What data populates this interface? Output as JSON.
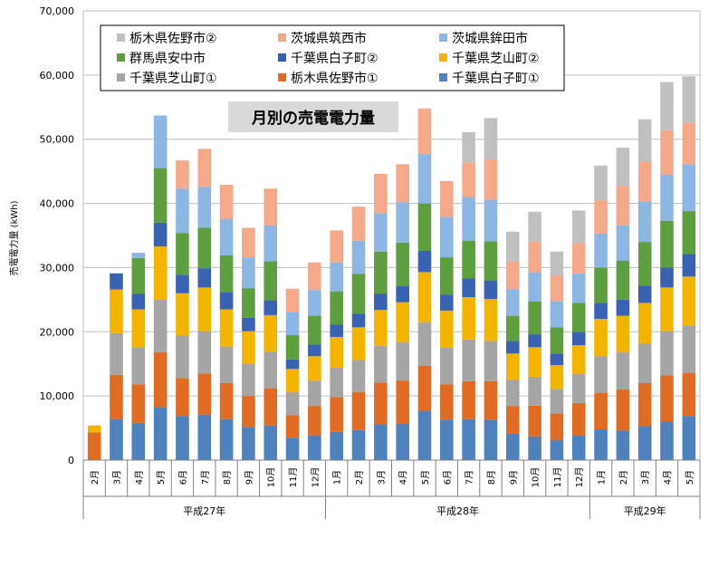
{
  "chart_data": {
    "type": "bar",
    "stacked": true,
    "title": "月別の売電電力量",
    "ylabel": "売電電力量 (kWh)",
    "ylim": [
      0,
      70000
    ],
    "yticks": [
      "0",
      "10,000",
      "20,000",
      "30,000",
      "40,000",
      "50,000",
      "60,000",
      "70,000"
    ],
    "ytick_values": [
      0,
      10000,
      20000,
      30000,
      40000,
      50000,
      60000,
      70000
    ],
    "grid": true,
    "legend_position": "top",
    "categories": [
      "2月",
      "3月",
      "4月",
      "5月",
      "6月",
      "7月",
      "8月",
      "9月",
      "10月",
      "11月",
      "12月",
      "1月",
      "2月",
      "3月",
      "4月",
      "5月",
      "6月",
      "7月",
      "8月",
      "9月",
      "10月",
      "11月",
      "12月",
      "1月",
      "2月",
      "3月",
      "4月",
      "5月"
    ],
    "groups": [
      {
        "label": "平成27年",
        "start": 0,
        "end": 10
      },
      {
        "label": "平成28年",
        "start": 11,
        "end": 22
      },
      {
        "label": "平成29年",
        "start": 23,
        "end": 27
      }
    ],
    "series": [
      {
        "name": "千葉県白子町①",
        "color": "#4f81bd",
        "values": [
          0,
          6400,
          5800,
          8300,
          6900,
          7100,
          6400,
          5200,
          5400,
          3500,
          3900,
          4400,
          4700,
          5600,
          5700,
          7700,
          6300,
          6400,
          6300,
          4100,
          3700,
          3100,
          3800,
          4800,
          4600,
          5300,
          6000,
          6900
        ]
      },
      {
        "name": "栃木県佐野市①",
        "color": "#e06c23",
        "values": [
          4300,
          6900,
          6000,
          8500,
          5900,
          6400,
          5600,
          4800,
          5800,
          3500,
          4500,
          5400,
          5900,
          6500,
          6700,
          7000,
          5500,
          5900,
          6000,
          4300,
          4800,
          4200,
          5100,
          5700,
          6400,
          6700,
          7200,
          6700
        ]
      },
      {
        "name": "千葉県芝山町①",
        "color": "#a5a5a5",
        "values": [
          0,
          6500,
          5800,
          8200,
          6600,
          6600,
          5700,
          5000,
          5700,
          3600,
          4000,
          4600,
          5000,
          5700,
          6000,
          6800,
          5700,
          6500,
          6300,
          4100,
          4500,
          3800,
          4500,
          5700,
          5800,
          6200,
          6900,
          7400
        ]
      },
      {
        "name": "千葉県芝山町②",
        "color": "#f3b400",
        "values": [
          1100,
          6800,
          5900,
          8300,
          6600,
          6800,
          5800,
          5100,
          5700,
          3600,
          3800,
          4800,
          5100,
          5600,
          6200,
          7800,
          5800,
          6600,
          6500,
          4100,
          4600,
          3700,
          4500,
          5800,
          5700,
          6300,
          6800,
          7600
        ]
      },
      {
        "name": "千葉県白子町②",
        "color": "#3a62b2",
        "values": [
          0,
          2500,
          2400,
          3700,
          2900,
          3000,
          2700,
          2100,
          2300,
          1500,
          1800,
          1900,
          2100,
          2500,
          2500,
          3300,
          2500,
          2900,
          2900,
          2000,
          2000,
          1800,
          2100,
          2500,
          2500,
          2700,
          3100,
          3500
        ]
      },
      {
        "name": "群馬県安中市",
        "color": "#5e9e3f",
        "values": [
          0,
          0,
          5600,
          8500,
          6500,
          6300,
          5700,
          4600,
          6100,
          3800,
          4500,
          5200,
          6200,
          6600,
          6800,
          7400,
          5800,
          5900,
          6100,
          3900,
          5100,
          4100,
          4500,
          5500,
          6100,
          6800,
          7300,
          6700
        ]
      },
      {
        "name": "茨城県鉾田市",
        "color": "#8eb6e3",
        "values": [
          0,
          0,
          800,
          8200,
          6900,
          6400,
          5700,
          4800,
          5600,
          3600,
          4000,
          4500,
          5200,
          6000,
          6300,
          7700,
          6300,
          6800,
          6500,
          4100,
          4600,
          4100,
          4600,
          5300,
          5500,
          6300,
          7200,
          7300
        ]
      },
      {
        "name": "茨城県筑西市",
        "color": "#f4a98b",
        "values": [
          0,
          0,
          0,
          0,
          4400,
          5900,
          5300,
          4600,
          5700,
          3600,
          4300,
          5000,
          5300,
          6100,
          5900,
          7100,
          5600,
          5400,
          6300,
          4400,
          4800,
          4000,
          4700,
          5200,
          6100,
          6200,
          6900,
          6500
        ]
      },
      {
        "name": "栃木県佐野市②",
        "color": "#c0c0c0",
        "values": [
          0,
          0,
          0,
          0,
          0,
          0,
          0,
          0,
          0,
          0,
          0,
          0,
          0,
          0,
          0,
          0,
          0,
          4700,
          6400,
          4600,
          4600,
          3700,
          5100,
          5400,
          6000,
          6600,
          7500,
          7200
        ]
      }
    ]
  }
}
